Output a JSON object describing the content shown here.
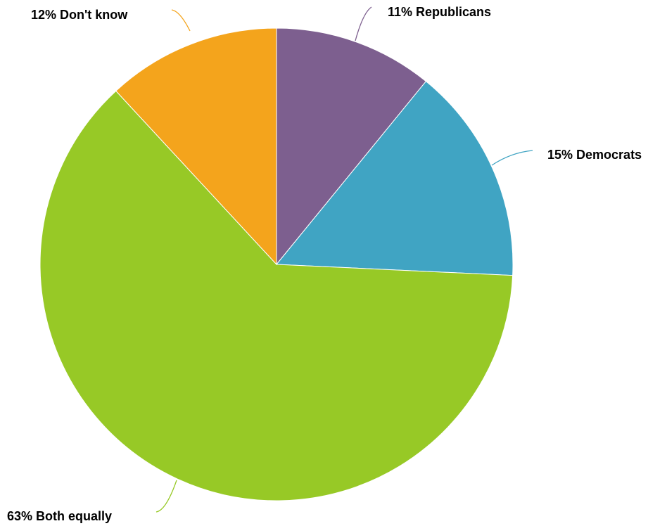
{
  "chart_data": {
    "type": "pie",
    "slices": [
      {
        "label": "Republicans",
        "value": 11,
        "color": "#7d5f8f"
      },
      {
        "label": "Democrats",
        "value": 15,
        "color": "#40a4c3"
      },
      {
        "label": "Both equally",
        "value": 63,
        "color": "#97c926"
      },
      {
        "label": "Don't know",
        "value": 12,
        "color": "#f4a41c"
      }
    ],
    "labels": [
      "11% Republicans",
      "15% Democrats",
      "63% Both equally",
      "12% Don't know"
    ],
    "start_angle": "12 o'clock",
    "direction": "clockwise"
  }
}
